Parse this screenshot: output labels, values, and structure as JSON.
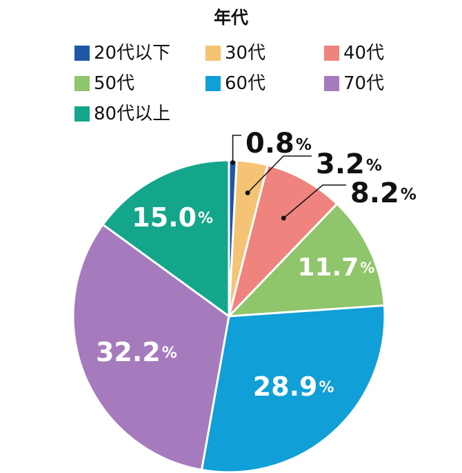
{
  "chart_data": {
    "type": "pie",
    "title": "年代",
    "percent_sign": "%",
    "slices": [
      {
        "label": "20代以下",
        "value": 0.8,
        "display": "0.8",
        "color": "#1f56a6"
      },
      {
        "label": "30代",
        "value": 3.2,
        "display": "3.2",
        "color": "#f4c373"
      },
      {
        "label": "40代",
        "value": 8.2,
        "display": "8.2",
        "color": "#ef837e"
      },
      {
        "label": "50代",
        "value": 11.7,
        "display": "11.7",
        "color": "#8fc56b"
      },
      {
        "label": "60代",
        "value": 28.9,
        "display": "28.9",
        "color": "#109fd6"
      },
      {
        "label": "70代",
        "value": 32.2,
        "display": "32.2",
        "color": "#a57bbe"
      },
      {
        "label": "80代以上",
        "value": 15.0,
        "display": "15.0",
        "color": "#14a68b"
      }
    ],
    "legend_position": "top",
    "start_angle": "12 o'clock, clockwise"
  }
}
